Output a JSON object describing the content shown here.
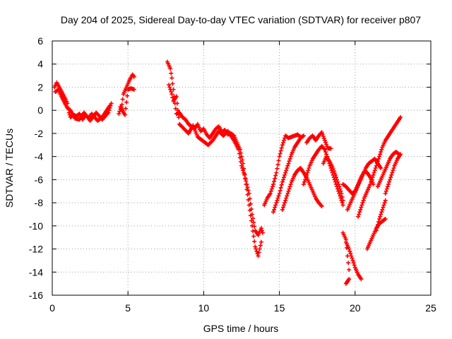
{
  "chart_data": {
    "type": "scatter",
    "title": "Day 204 of 2025, Sidereal Day-to-day VTEC variation (SDTVAR) for receiver p807",
    "xlabel": "GPS time / hours",
    "ylabel": "SDTVAR / TECUs",
    "xlim": [
      0,
      25
    ],
    "ylim": [
      -16,
      6
    ],
    "xticks": [
      0,
      5,
      10,
      15,
      20,
      25
    ],
    "yticks": [
      -16,
      -14,
      -12,
      -10,
      -8,
      -6,
      -4,
      -2,
      0,
      2,
      4,
      6
    ],
    "grid": true,
    "legend": "none",
    "marker": "plus",
    "color": "#ff0000",
    "series": [
      {
        "segments": [
          [
            [
              0.15,
              2.0
            ],
            [
              0.3,
              2.4
            ],
            [
              0.5,
              1.9
            ],
            [
              0.7,
              1.4
            ],
            [
              0.9,
              0.9
            ],
            [
              1.0,
              0.6
            ],
            [
              1.1,
              -0.2
            ],
            [
              1.2,
              -0.6
            ],
            [
              1.4,
              -0.4
            ],
            [
              1.6,
              -0.5
            ],
            [
              1.8,
              -0.3
            ],
            [
              2.0,
              -0.8
            ],
            [
              2.2,
              -0.4
            ],
            [
              2.4,
              -0.7
            ],
            [
              2.6,
              -0.3
            ],
            [
              2.8,
              -0.6
            ],
            [
              3.0,
              -0.9
            ],
            [
              3.2,
              -0.7
            ],
            [
              3.4,
              -0.4
            ],
            [
              3.6,
              0.0
            ],
            [
              3.8,
              0.4
            ]
          ],
          [
            [
              0.2,
              1.6
            ],
            [
              0.4,
              1.8
            ],
            [
              0.6,
              1.2
            ],
            [
              0.8,
              0.7
            ],
            [
              1.0,
              0.2
            ],
            [
              1.2,
              0.0
            ],
            [
              1.5,
              -0.7
            ],
            [
              1.8,
              -0.8
            ],
            [
              2.1,
              -0.2
            ],
            [
              2.5,
              -0.9
            ],
            [
              2.9,
              -0.2
            ],
            [
              3.3,
              -0.8
            ],
            [
              3.7,
              -0.2
            ],
            [
              3.9,
              0.6
            ]
          ],
          [
            [
              4.4,
              -0.3
            ],
            [
              4.6,
              0.5
            ],
            [
              4.7,
              1.4
            ],
            [
              4.9,
              2.0
            ],
            [
              5.1,
              2.6
            ],
            [
              5.3,
              3.1
            ],
            [
              5.4,
              2.9
            ]
          ],
          [
            [
              4.5,
              0.3
            ],
            [
              4.8,
              -0.4
            ],
            [
              5.0,
              1.8
            ],
            [
              5.2,
              1.9
            ],
            [
              5.4,
              1.8
            ]
          ],
          [
            [
              7.6,
              4.2
            ],
            [
              7.8,
              3.6
            ],
            [
              7.9,
              2.8
            ],
            [
              8.0,
              1.8
            ],
            [
              8.1,
              0.6
            ],
            [
              8.2,
              -0.3
            ],
            [
              8.4,
              -0.2
            ],
            [
              8.6,
              -0.6
            ],
            [
              8.8,
              -0.8
            ],
            [
              9.0,
              -1.2
            ],
            [
              9.2,
              -1.4
            ],
            [
              9.4,
              -1.6
            ],
            [
              9.6,
              -1.2
            ],
            [
              9.8,
              -1.8
            ],
            [
              10.0,
              -1.6
            ],
            [
              10.2,
              -2.1
            ],
            [
              10.4,
              -2.4
            ],
            [
              10.6,
              -2.0
            ],
            [
              10.8,
              -1.6
            ],
            [
              11.0,
              -1.4
            ],
            [
              11.2,
              -1.9
            ],
            [
              11.4,
              -1.7
            ],
            [
              11.6,
              -2.1
            ],
            [
              11.8,
              -2.0
            ],
            [
              12.0,
              -2.2
            ],
            [
              12.2,
              -2.8
            ],
            [
              12.4,
              -3.4
            ],
            [
              12.6,
              -4.6
            ],
            [
              12.8,
              -6.4
            ],
            [
              13.0,
              -8.2
            ],
            [
              13.2,
              -10.0
            ],
            [
              13.4,
              -11.8
            ],
            [
              13.6,
              -12.6
            ],
            [
              13.8,
              -11.4
            ]
          ],
          [
            [
              7.7,
              2.2
            ],
            [
              7.9,
              1.4
            ],
            [
              8.0,
              0.8
            ],
            [
              8.2,
              1.2
            ],
            [
              8.4,
              -1.2
            ],
            [
              8.7,
              -1.6
            ],
            [
              9.0,
              -2.0
            ],
            [
              9.3,
              -1.3
            ],
            [
              9.6,
              -2.3
            ],
            [
              10.0,
              -2.7
            ],
            [
              10.3,
              -3.0
            ],
            [
              10.6,
              -2.6
            ],
            [
              11.0,
              -1.8
            ],
            [
              11.3,
              -2.2
            ],
            [
              11.6,
              -1.8
            ],
            [
              12.0,
              -2.6
            ],
            [
              12.3,
              -3.4
            ],
            [
              12.5,
              -4.8
            ],
            [
              12.7,
              -5.6
            ],
            [
              13.0,
              -7.2
            ],
            [
              13.2,
              -9.0
            ],
            [
              13.4,
              -10.4
            ],
            [
              13.6,
              -10.8
            ],
            [
              13.8,
              -10.2
            ],
            [
              13.9,
              -10.6
            ]
          ],
          [
            [
              14.0,
              -8.2
            ],
            [
              14.2,
              -7.6
            ],
            [
              14.4,
              -7.2
            ],
            [
              14.6,
              -6.4
            ],
            [
              14.8,
              -5.4
            ],
            [
              15.0,
              -4.0
            ],
            [
              15.2,
              -3.0
            ],
            [
              15.4,
              -2.2
            ],
            [
              15.6,
              -2.4
            ],
            [
              15.8,
              -2.3
            ],
            [
              16.0,
              -2.2
            ],
            [
              16.2,
              -2.1
            ],
            [
              16.4,
              -2.3
            ]
          ],
          [
            [
              14.6,
              -8.8
            ],
            [
              14.8,
              -8.0
            ],
            [
              15.0,
              -7.2
            ],
            [
              15.2,
              -6.2
            ],
            [
              15.4,
              -5.4
            ],
            [
              15.6,
              -4.6
            ],
            [
              15.8,
              -3.8
            ],
            [
              16.0,
              -3.2
            ],
            [
              16.2,
              -2.8
            ],
            [
              16.4,
              -2.4
            ],
            [
              16.6,
              -2.2
            ]
          ],
          [
            [
              15.2,
              -8.6
            ],
            [
              15.4,
              -7.8
            ],
            [
              15.6,
              -7.0
            ],
            [
              15.8,
              -6.2
            ],
            [
              16.0,
              -5.6
            ],
            [
              16.2,
              -5.2
            ],
            [
              16.4,
              -5.0
            ],
            [
              16.6,
              -5.4
            ],
            [
              16.8,
              -5.8
            ],
            [
              17.0,
              -6.4
            ],
            [
              17.2,
              -7.0
            ],
            [
              17.4,
              -7.6
            ],
            [
              17.6,
              -8.0
            ],
            [
              17.8,
              -8.3
            ]
          ],
          [
            [
              16.8,
              -2.8
            ],
            [
              17.0,
              -2.4
            ],
            [
              17.2,
              -2.2
            ],
            [
              17.4,
              -2.6
            ],
            [
              17.6,
              -2.2
            ],
            [
              17.8,
              -1.9
            ],
            [
              18.0,
              -2.6
            ],
            [
              18.2,
              -3.3
            ],
            [
              18.4,
              -3.3
            ]
          ],
          [
            [
              16.6,
              -6.4
            ],
            [
              16.8,
              -5.6
            ],
            [
              17.0,
              -4.8
            ],
            [
              17.2,
              -4.2
            ],
            [
              17.4,
              -3.8
            ],
            [
              17.6,
              -3.4
            ],
            [
              17.8,
              -3.1
            ],
            [
              18.0,
              -3.4
            ],
            [
              18.2,
              -4.2
            ],
            [
              18.4,
              -5.0
            ],
            [
              18.6,
              -5.8
            ],
            [
              18.8,
              -6.6
            ],
            [
              19.0,
              -7.4
            ],
            [
              19.2,
              -8.2
            ]
          ],
          [
            [
              17.9,
              -4.6
            ],
            [
              18.1,
              -4.0
            ],
            [
              18.3,
              -4.4
            ],
            [
              18.5,
              -4.9
            ],
            [
              18.7,
              -5.6
            ],
            [
              18.9,
              -6.4
            ],
            [
              19.1,
              -7.2
            ],
            [
              19.2,
              -7.8
            ]
          ],
          [
            [
              19.2,
              -10.6
            ],
            [
              19.4,
              -11.2
            ],
            [
              19.5,
              -12.6
            ],
            [
              19.6,
              -13.8
            ],
            [
              19.6,
              -14.6
            ],
            [
              19.4,
              -15.0
            ],
            [
              19.5,
              -14.8
            ]
          ],
          [
            [
              19.4,
              -11.4
            ],
            [
              19.6,
              -12.0
            ],
            [
              19.8,
              -12.8
            ],
            [
              20.0,
              -13.6
            ],
            [
              20.2,
              -14.2
            ],
            [
              20.4,
              -14.6
            ]
          ],
          [
            [
              19.2,
              -6.4
            ],
            [
              19.4,
              -6.6
            ],
            [
              19.6,
              -6.9
            ],
            [
              19.8,
              -7.2
            ],
            [
              20.0,
              -7.0
            ],
            [
              20.2,
              -6.4
            ],
            [
              20.4,
              -5.8
            ],
            [
              20.6,
              -5.3
            ],
            [
              20.8,
              -5.4
            ],
            [
              21.0,
              -5.8
            ],
            [
              21.2,
              -6.4
            ]
          ],
          [
            [
              19.5,
              -8.6
            ],
            [
              19.7,
              -8.0
            ],
            [
              19.9,
              -7.4
            ],
            [
              20.1,
              -6.8
            ],
            [
              20.3,
              -6.2
            ],
            [
              20.5,
              -5.6
            ],
            [
              20.7,
              -5.0
            ],
            [
              20.9,
              -4.6
            ],
            [
              21.1,
              -4.4
            ],
            [
              21.3,
              -4.2
            ],
            [
              21.5,
              -4.6
            ],
            [
              21.7,
              -5.0
            ]
          ],
          [
            [
              20.8,
              -12.0
            ],
            [
              21.0,
              -11.4
            ],
            [
              21.2,
              -10.8
            ],
            [
              21.4,
              -10.2
            ],
            [
              21.6,
              -9.8
            ],
            [
              21.8,
              -9.6
            ],
            [
              22.0,
              -9.4
            ]
          ],
          [
            [
              20.2,
              -9.2
            ],
            [
              20.4,
              -8.4
            ],
            [
              20.6,
              -7.6
            ],
            [
              20.8,
              -7.0
            ],
            [
              21.0,
              -6.4
            ],
            [
              21.2,
              -5.6
            ],
            [
              21.4,
              -4.8
            ],
            [
              21.6,
              -4.0
            ],
            [
              21.8,
              -3.2
            ],
            [
              22.0,
              -2.6
            ],
            [
              22.2,
              -2.2
            ],
            [
              22.4,
              -1.8
            ],
            [
              22.6,
              -1.4
            ],
            [
              22.8,
              -1.0
            ],
            [
              23.0,
              -0.6
            ]
          ],
          [
            [
              21.5,
              -6.6
            ],
            [
              21.7,
              -6.0
            ],
            [
              21.9,
              -5.4
            ],
            [
              22.1,
              -4.8
            ],
            [
              22.3,
              -4.2
            ],
            [
              22.5,
              -3.8
            ],
            [
              22.7,
              -3.6
            ],
            [
              22.9,
              -3.8
            ]
          ],
          [
            [
              22.0,
              -7.2
            ],
            [
              22.2,
              -6.4
            ],
            [
              22.4,
              -5.6
            ],
            [
              22.6,
              -4.8
            ],
            [
              22.8,
              -4.2
            ],
            [
              23.0,
              -3.8
            ]
          ],
          [
            [
              21.4,
              -10.4
            ],
            [
              21.6,
              -9.4
            ],
            [
              21.8,
              -8.6
            ],
            [
              22.0,
              -7.8
            ]
          ]
        ]
      }
    ]
  }
}
